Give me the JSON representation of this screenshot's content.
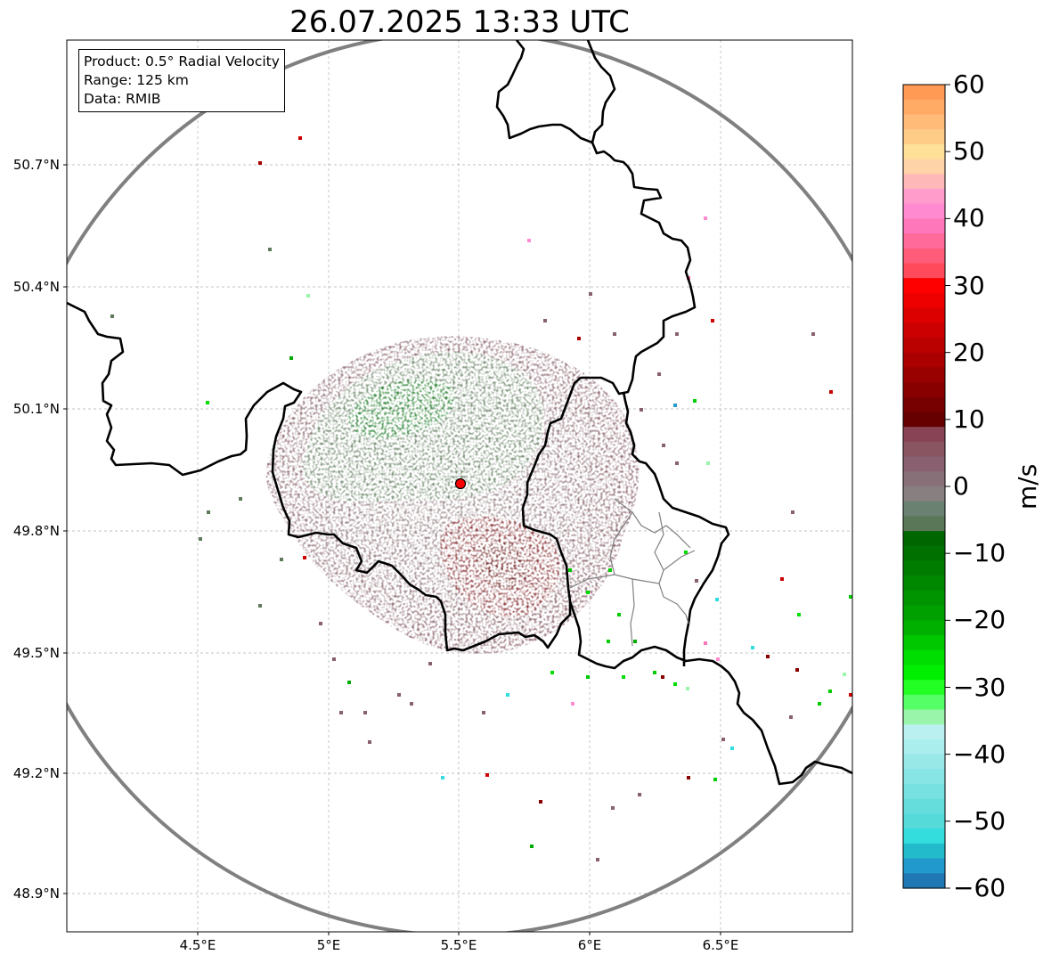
{
  "title": "26.07.2025 13:33 UTC",
  "info_box": {
    "product": "Product: 0.5° Radial Velocity",
    "range": "Range: 125 km",
    "data": "Data: RMIB"
  },
  "axes": {
    "lat_labels": [
      "50.7°N",
      "50.4°N",
      "50.1°N",
      "49.8°N",
      "49.5°N",
      "49.2°N",
      "48.9°N"
    ],
    "lon_labels": [
      "4.5°E",
      "5°E",
      "5.5°E",
      "6°E",
      "6.5°E"
    ],
    "grid": true
  },
  "colorbar": {
    "label": "m/s",
    "min": -60,
    "max": 60,
    "ticks": [
      "60",
      "50",
      "40",
      "30",
      "20",
      "10",
      "0",
      "−10",
      "−20",
      "−30",
      "−40",
      "−50",
      "−60"
    ],
    "colors_top_to_bottom": [
      "#ff9a55",
      "#ffab66",
      "#ffbb77",
      "#ffcc88",
      "#ffe099",
      "#ffd3a8",
      "#ffb8b8",
      "#ff9ccc",
      "#ff8ad0",
      "#ff77bb",
      "#ff6a9a",
      "#ff5c7a",
      "#ff4a5c",
      "#ff0000",
      "#ee0000",
      "#dd0000",
      "#cc0000",
      "#bb0000",
      "#aa0000",
      "#990000",
      "#880000",
      "#770000",
      "#660000",
      "#884455",
      "#885560",
      "#886070",
      "#887078",
      "#888080",
      "#6a8070",
      "#5a7858",
      "#006600",
      "#007000",
      "#007d00",
      "#008800",
      "#009500",
      "#00a000",
      "#00b000",
      "#00c800",
      "#00dd00",
      "#00ee00",
      "#22ff22",
      "#55ff66",
      "#99f5aa",
      "#bbf0f0",
      "#aaeeee",
      "#99e8e8",
      "#88e5e5",
      "#77e0e0",
      "#66dddd",
      "#55d9d9",
      "#33dddd",
      "#22bbcc",
      "#2299cc",
      "#1f77b4"
    ]
  },
  "radar": {
    "site_marker": "red circle",
    "range_ring_color": "#808080"
  }
}
